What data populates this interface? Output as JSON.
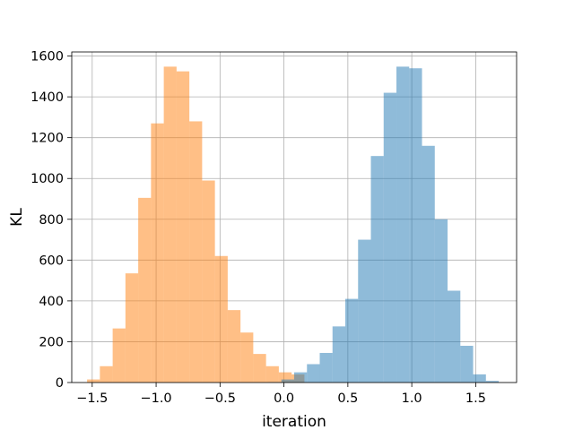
{
  "chart_data": {
    "type": "bar",
    "xlabel": "iteration",
    "ylabel": "KL",
    "xlim": [
      -1.66,
      1.82
    ],
    "ylim": [
      0,
      1620
    ],
    "xticks": [
      -1.5,
      -1.0,
      -0.5,
      0.0,
      0.5,
      1.0,
      1.5
    ],
    "xtick_labels": [
      "−1.5",
      "−1.0",
      "−0.5",
      "0.0",
      "0.5",
      "1.0",
      "1.5"
    ],
    "yticks": [
      0,
      200,
      400,
      600,
      800,
      1000,
      1200,
      1400,
      1600
    ],
    "ytick_labels": [
      "0",
      "200",
      "400",
      "600",
      "800",
      "1000",
      "1200",
      "1400",
      "1600"
    ],
    "grid": true,
    "series": [
      {
        "color": "#ff7f0e",
        "opacity": 0.5,
        "bin_edges": [
          -1.54,
          -1.44,
          -1.34,
          -1.24,
          -1.14,
          -1.04,
          -0.94,
          -0.84,
          -0.74,
          -0.64,
          -0.54,
          -0.44,
          -0.34,
          -0.24,
          -0.14,
          -0.04,
          0.06,
          0.16
        ],
        "counts": [
          15,
          80,
          265,
          535,
          905,
          1270,
          1548,
          1525,
          1280,
          990,
          620,
          355,
          245,
          140,
          80,
          50,
          40
        ]
      },
      {
        "color": "#1f77b4",
        "opacity": 0.5,
        "bin_edges": [
          -0.12,
          -0.02,
          0.08,
          0.18,
          0.28,
          0.38,
          0.48,
          0.58,
          0.68,
          0.78,
          0.88,
          0.98,
          1.08,
          1.18,
          1.28,
          1.38,
          1.48,
          1.58,
          1.68
        ],
        "counts": [
          2,
          15,
          50,
          90,
          145,
          275,
          410,
          700,
          1110,
          1420,
          1548,
          1540,
          1160,
          800,
          450,
          180,
          40,
          8
        ]
      }
    ]
  }
}
